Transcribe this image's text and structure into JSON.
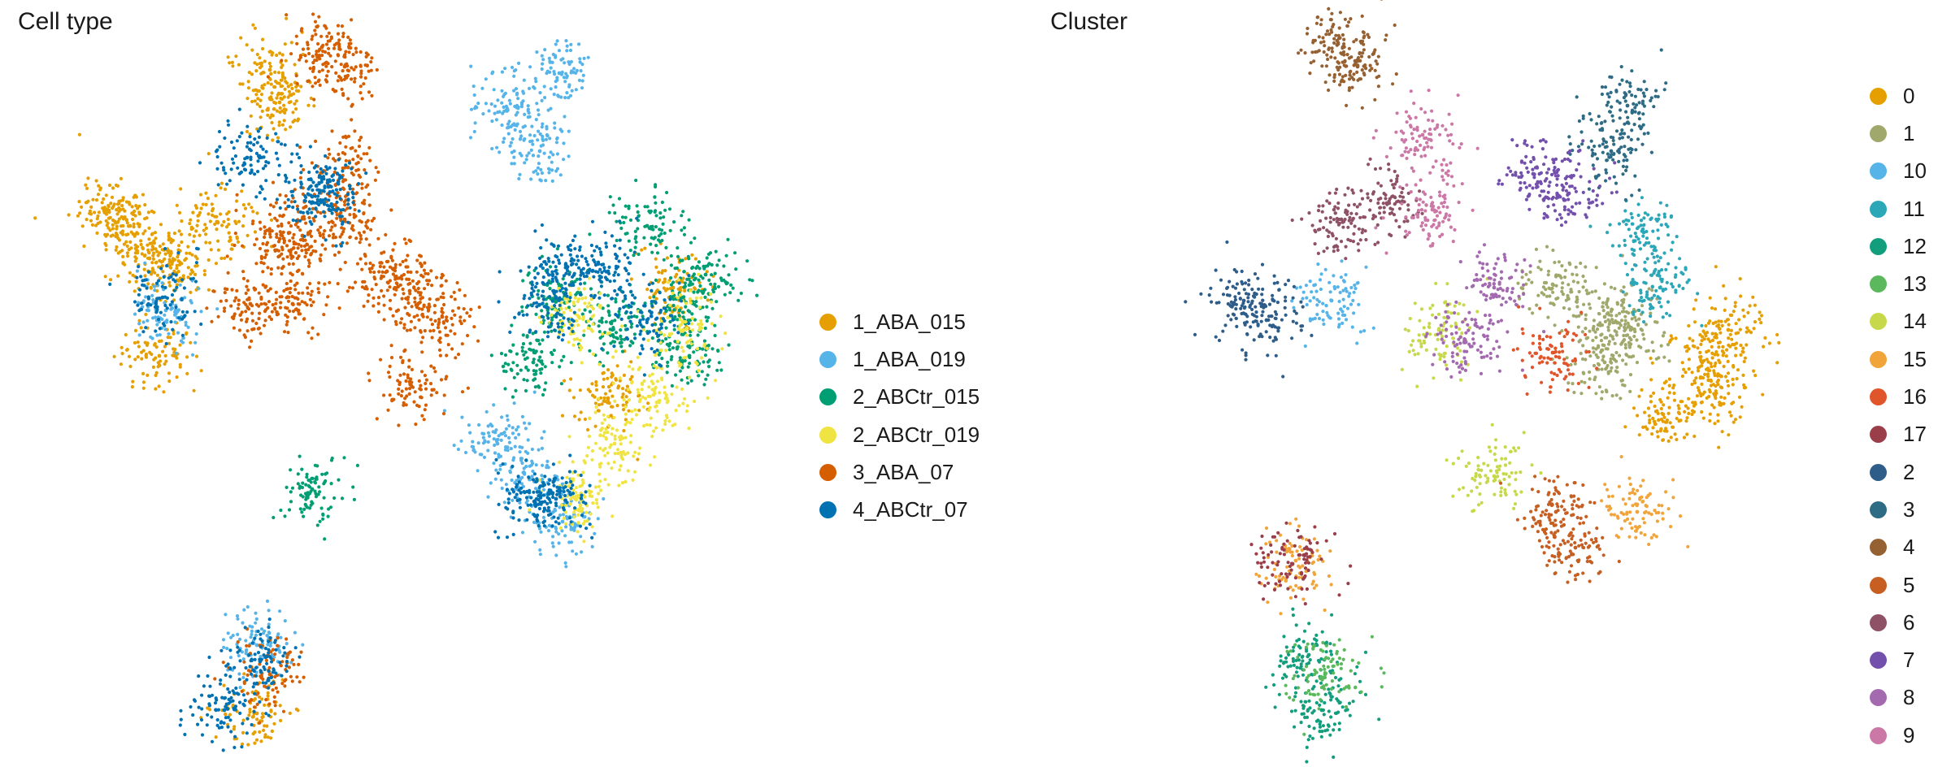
{
  "chart_data": [
    {
      "type": "scatter",
      "title": "Cell type",
      "legend_position": "right",
      "grid": false,
      "axes_visible": false,
      "legend": [
        {
          "label": "1_ABA_015",
          "color": "#E69F00"
        },
        {
          "label": "1_ABA_019",
          "color": "#56B4E9"
        },
        {
          "label": "2_ABCtr_015",
          "color": "#009E73"
        },
        {
          "label": "2_ABCtr_019",
          "color": "#F0E442"
        },
        {
          "label": "3_ABA_07",
          "color": "#D55E00"
        },
        {
          "label": "4_ABCtr_07",
          "color": "#0072B2"
        }
      ],
      "groups": [
        {
          "category": "1_ABA_015",
          "points": [
            [
              -7.5,
              4.8
            ],
            [
              -8.2,
              5.3
            ],
            [
              -6.9,
              3.8
            ],
            [
              -6.6,
              0.8
            ],
            [
              -3.2,
              9.6
            ],
            [
              -2.9,
              8.6
            ],
            [
              -4.8,
              4.9
            ],
            [
              -6.2,
              3.7
            ],
            [
              9.2,
              2.9
            ],
            [
              7.2,
              -0.5
            ],
            [
              -3.6,
              -10.2
            ]
          ]
        },
        {
          "category": "1_ABA_019",
          "points": [
            [
              5.7,
              9.5
            ],
            [
              5.1,
              7.1
            ],
            [
              4.1,
              8.4
            ],
            [
              4.8,
              -3.0
            ],
            [
              5.8,
              -4.3
            ],
            [
              3.8,
              -1.9
            ],
            [
              -6.4,
              2.2
            ],
            [
              -3.6,
              -8.1
            ]
          ]
        },
        {
          "category": "2_ABCtr_015",
          "points": [
            [
              9.4,
              2.2
            ],
            [
              9.7,
              0.8
            ],
            [
              10.2,
              3.3
            ],
            [
              5.6,
              2.5
            ],
            [
              7.3,
              1.8
            ],
            [
              4.9,
              0.6
            ],
            [
              8.4,
              4.8
            ],
            [
              -1.9,
              -3.3
            ]
          ]
        },
        {
          "category": "2_ABCtr_019",
          "points": [
            [
              8.6,
              -0.4
            ],
            [
              7.4,
              -1.9
            ],
            [
              6.3,
              -3.5
            ],
            [
              6.3,
              2.0
            ],
            [
              9.5,
              1.6
            ]
          ]
        },
        {
          "category": "3_ABA_07",
          "points": [
            [
              -1.6,
              10.3
            ],
            [
              -0.9,
              9.7
            ],
            [
              -0.8,
              6.6
            ],
            [
              -0.9,
              5.0
            ],
            [
              -2.2,
              4.5
            ],
            [
              -2.9,
              4.4
            ],
            [
              -2.5,
              2.4
            ],
            [
              -3.8,
              2.4
            ],
            [
              0.4,
              3.4
            ],
            [
              1.1,
              2.8
            ],
            [
              2.1,
              2.0
            ],
            [
              1.1,
              0.0
            ],
            [
              -3.2,
              -9.0
            ]
          ]
        },
        {
          "category": "4_ABCtr_07",
          "points": [
            [
              5.9,
              3.6
            ],
            [
              5.3,
              2.3
            ],
            [
              8.4,
              1.9
            ],
            [
              7.2,
              3.4
            ],
            [
              -6.5,
              2.6
            ],
            [
              -3.9,
              6.9
            ],
            [
              -1.4,
              6.0
            ],
            [
              -1.9,
              5.7
            ],
            [
              5.1,
              -3.5
            ],
            [
              5.6,
              -3.6
            ],
            [
              -3.5,
              -8.6
            ],
            [
              -4.6,
              -10.1
            ]
          ]
        }
      ]
    },
    {
      "type": "scatter",
      "title": "Cluster",
      "legend_position": "right",
      "grid": false,
      "axes_visible": false,
      "legend": [
        {
          "label": "0",
          "color": "#E69F00"
        },
        {
          "label": "1",
          "color": "#A0A86B"
        },
        {
          "label": "10",
          "color": "#56B4E9"
        },
        {
          "label": "11",
          "color": "#2BA7B8"
        },
        {
          "label": "12",
          "color": "#129E7D"
        },
        {
          "label": "13",
          "color": "#5CB85C"
        },
        {
          "label": "14",
          "color": "#C7D94B"
        },
        {
          "label": "15",
          "color": "#F0A43A"
        },
        {
          "label": "16",
          "color": "#E1552A"
        },
        {
          "label": "17",
          "color": "#9A3E4A"
        },
        {
          "label": "2",
          "color": "#2E5D8A"
        },
        {
          "label": "3",
          "color": "#2E6B84"
        },
        {
          "label": "4",
          "color": "#966132"
        },
        {
          "label": "5",
          "color": "#C65F21"
        },
        {
          "label": "6",
          "color": "#8E5165"
        },
        {
          "label": "7",
          "color": "#7350AC"
        },
        {
          "label": "8",
          "color": "#A46AB0"
        },
        {
          "label": "9",
          "color": "#CC78A7"
        }
      ],
      "groups": [
        {
          "category": "0",
          "points": [
            [
              9.4,
              1.6
            ],
            [
              8.6,
              0.6
            ],
            [
              9.0,
              -0.4
            ],
            [
              7.4,
              -1.0
            ]
          ]
        },
        {
          "category": "1",
          "points": [
            [
              5.6,
              2.0
            ],
            [
              6.4,
              1.6
            ],
            [
              5.6,
              0.6
            ],
            [
              4.0,
              3.0
            ]
          ]
        },
        {
          "category": "10",
          "points": [
            [
              -2.8,
              2.5
            ]
          ]
        },
        {
          "category": "11",
          "points": [
            [
              7.3,
              2.9
            ],
            [
              6.8,
              4.6
            ]
          ]
        },
        {
          "category": "12",
          "points": [
            [
              -3.5,
              -8.4
            ],
            [
              -3.1,
              -10.1
            ]
          ]
        },
        {
          "category": "13",
          "points": [
            [
              -3.0,
              -9.0
            ]
          ]
        },
        {
          "category": "14",
          "points": [
            [
              2.2,
              -2.9
            ],
            [
              0.5,
              1.6
            ]
          ]
        },
        {
          "category": "15",
          "points": [
            [
              -3.9,
              -5.5
            ],
            [
              6.6,
              -4.0
            ]
          ]
        },
        {
          "category": "16",
          "points": [
            [
              4.0,
              0.9
            ]
          ]
        },
        {
          "category": "17",
          "points": [
            [
              -4.0,
              -5.6
            ]
          ]
        },
        {
          "category": "2",
          "points": [
            [
              -5.5,
              2.5
            ],
            [
              -4.8,
              1.9
            ]
          ]
        },
        {
          "category": "3",
          "points": [
            [
              6.3,
              8.5
            ],
            [
              5.8,
              7.1
            ]
          ]
        },
        {
          "category": "4",
          "points": [
            [
              -2.0,
              9.7
            ],
            [
              -2.6,
              10.4
            ]
          ]
        },
        {
          "category": "5",
          "points": [
            [
              4.1,
              -4.0
            ],
            [
              4.7,
              -5.1
            ]
          ]
        },
        {
          "category": "6",
          "points": [
            [
              -2.5,
              5.0
            ],
            [
              -1.1,
              5.5
            ]
          ]
        },
        {
          "category": "7",
          "points": [
            [
              4.5,
              5.8
            ],
            [
              3.4,
              6.4
            ]
          ]
        },
        {
          "category": "8",
          "points": [
            [
              2.2,
              2.9
            ],
            [
              1.3,
              1.3
            ]
          ]
        },
        {
          "category": "9",
          "points": [
            [
              0.0,
              7.6
            ],
            [
              0.3,
              5.3
            ]
          ]
        }
      ]
    }
  ]
}
